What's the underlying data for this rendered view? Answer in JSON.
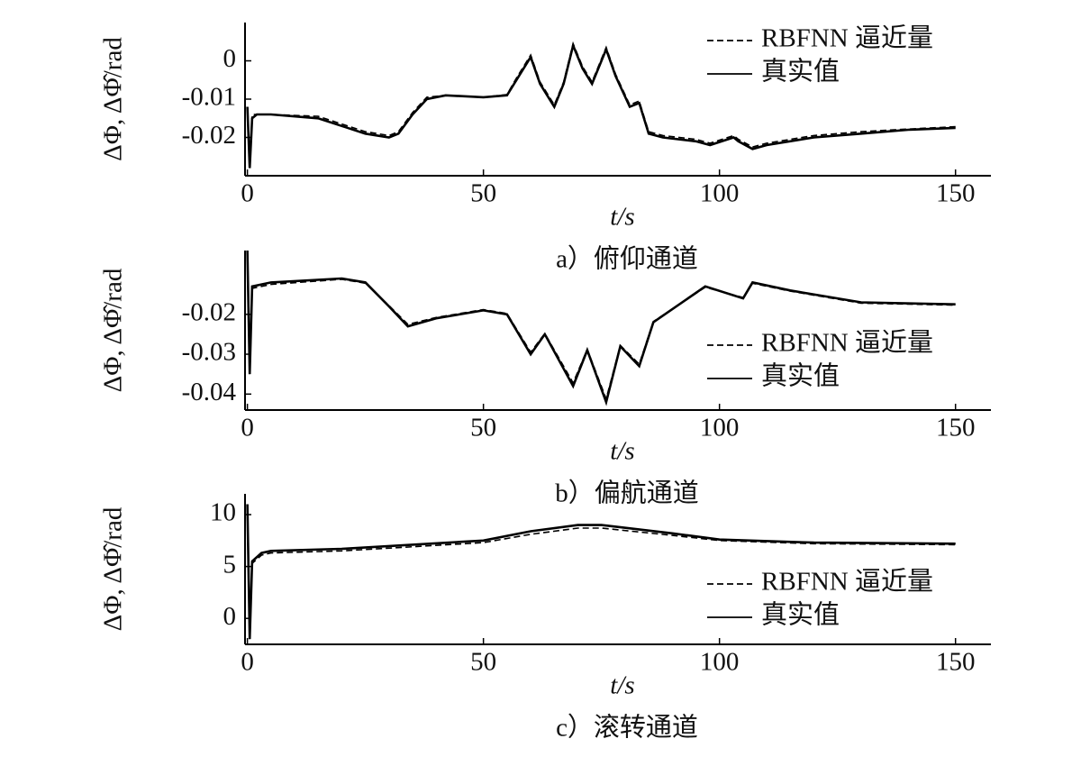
{
  "chart_data": [
    {
      "type": "line",
      "caption": "a）俯仰通道",
      "xlabel": "t/s",
      "ylabel": "ΔΦ, ΔΦ̂/rad",
      "legend": "upper right",
      "xlim": [
        -0.5,
        157.5
      ],
      "xticks": [
        0,
        50,
        100,
        150
      ],
      "ylim": [
        -0.03,
        0.01
      ],
      "yticks": [
        -0.02,
        -0.01,
        0
      ],
      "x": [
        0,
        0.5,
        1,
        2,
        5,
        15,
        20,
        25,
        30,
        32,
        35,
        38,
        42,
        50,
        55,
        57,
        60,
        62,
        65,
        67,
        69,
        71,
        73,
        76,
        78,
        81,
        83,
        85,
        88,
        95,
        98,
        103,
        104,
        107,
        110,
        120,
        130,
        140,
        150
      ],
      "series": [
        {
          "name": "RBFNN 逼近量",
          "color": "#000000",
          "linestyle": "dashed",
          "values": [
            -0.012,
            -0.027,
            -0.014,
            -0.014,
            -0.014,
            -0.0145,
            -0.0165,
            -0.0185,
            -0.0195,
            -0.0185,
            -0.0135,
            -0.0095,
            -0.009,
            -0.0095,
            -0.0088,
            -0.0045,
            0.0015,
            -0.0055,
            -0.0115,
            -0.0055,
            0.0045,
            -0.0015,
            -0.0055,
            0.0035,
            -0.0035,
            -0.0115,
            -0.0105,
            -0.0185,
            -0.0195,
            -0.0205,
            -0.0215,
            -0.0195,
            -0.0205,
            -0.0225,
            -0.0215,
            -0.0195,
            -0.0185,
            -0.0178,
            -0.0172
          ]
        },
        {
          "name": "真实值",
          "color": "#000000",
          "linestyle": "solid",
          "values": [
            -0.012,
            -0.028,
            -0.015,
            -0.014,
            -0.014,
            -0.015,
            -0.017,
            -0.019,
            -0.02,
            -0.019,
            -0.014,
            -0.01,
            -0.009,
            -0.0095,
            -0.009,
            -0.005,
            0.001,
            -0.006,
            -0.012,
            -0.006,
            0.004,
            -0.002,
            -0.006,
            0.003,
            -0.004,
            -0.012,
            -0.011,
            -0.019,
            -0.02,
            -0.021,
            -0.022,
            -0.02,
            -0.021,
            -0.023,
            -0.022,
            -0.02,
            -0.019,
            -0.018,
            -0.0175
          ]
        }
      ]
    },
    {
      "type": "line",
      "caption": "b）偏航通道",
      "xlabel": "t/s",
      "ylabel": "ΔΦ, ΔΦ̂/rad",
      "legend": "lower right",
      "xlim": [
        -0.5,
        157.5
      ],
      "xticks": [
        0,
        50,
        100,
        150
      ],
      "ylim": [
        -0.044,
        -0.004
      ],
      "yticks": [
        -0.04,
        -0.03,
        -0.02
      ],
      "x": [
        0,
        0.5,
        1,
        5,
        20,
        25,
        30,
        34,
        40,
        50,
        55,
        60,
        63,
        69,
        72,
        76,
        79,
        83,
        86,
        97,
        105,
        107,
        115,
        130,
        150
      ],
      "series": [
        {
          "name": "RBFNN 逼近量",
          "color": "#000000",
          "linestyle": "dashed",
          "values": [
            -0.005,
            -0.033,
            -0.0135,
            -0.0125,
            -0.0112,
            -0.0122,
            -0.0178,
            -0.0225,
            -0.0208,
            -0.0188,
            -0.0198,
            -0.0295,
            -0.0248,
            -0.0372,
            -0.0288,
            -0.0412,
            -0.0278,
            -0.0325,
            -0.0218,
            -0.0132,
            -0.0158,
            -0.0122,
            -0.0142,
            -0.0172,
            -0.0177
          ]
        },
        {
          "name": "真实值",
          "color": "#000000",
          "linestyle": "solid",
          "values": [
            -0.004,
            -0.035,
            -0.013,
            -0.012,
            -0.011,
            -0.012,
            -0.018,
            -0.023,
            -0.021,
            -0.019,
            -0.02,
            -0.03,
            -0.025,
            -0.038,
            -0.029,
            -0.042,
            -0.028,
            -0.033,
            -0.022,
            -0.013,
            -0.016,
            -0.012,
            -0.014,
            -0.017,
            -0.0175
          ]
        }
      ]
    },
    {
      "type": "line",
      "caption": "c）滚转通道",
      "xlabel": "t/s",
      "ylabel": "ΔΦ, ΔΦ̂/rad",
      "legend": "lower right",
      "xlim": [
        -0.5,
        157.5
      ],
      "xticks": [
        0,
        50,
        100,
        150
      ],
      "ylim": [
        -2.5,
        12
      ],
      "yticks": [
        0,
        5,
        10
      ],
      "x": [
        0,
        0.5,
        1,
        3,
        5,
        20,
        50,
        60,
        70,
        75,
        90,
        100,
        120,
        150
      ],
      "series": [
        {
          "name": "RBFNN 逼近量",
          "color": "#000000",
          "linestyle": "dashed",
          "values": [
            10,
            -1.5,
            5.3,
            6.1,
            6.3,
            6.5,
            7.3,
            8.1,
            8.7,
            8.7,
            8.0,
            7.5,
            7.2,
            7.1
          ]
        },
        {
          "name": "真实值",
          "color": "#000000",
          "linestyle": "solid",
          "values": [
            11,
            -2,
            5.5,
            6.3,
            6.5,
            6.7,
            7.5,
            8.4,
            9.0,
            9.0,
            8.2,
            7.6,
            7.3,
            7.2
          ]
        }
      ]
    }
  ]
}
